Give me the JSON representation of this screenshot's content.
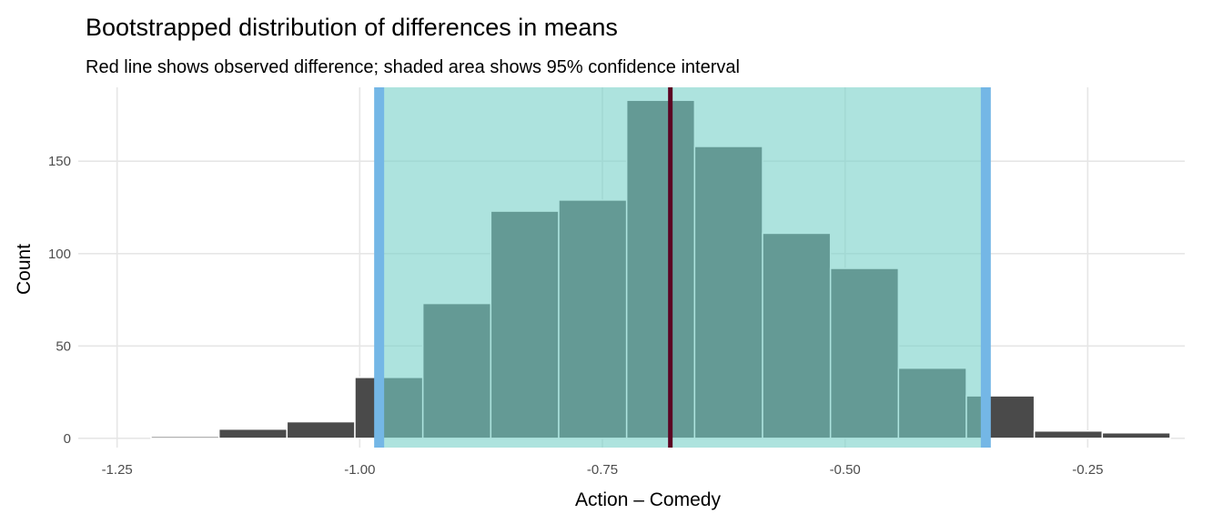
{
  "chart_data": {
    "type": "histogram",
    "title": "Bootstrapped distribution of differences in means",
    "subtitle": "Red line shows observed difference; shaded area shows 95% confidence interval",
    "xlabel": "Action – Comedy",
    "ylabel": "Count",
    "xlim": [
      -1.29,
      -0.15
    ],
    "ylim": [
      -5,
      190
    ],
    "x_ticks": [
      -1.25,
      -1.0,
      -0.75,
      -0.5,
      -0.25
    ],
    "x_tick_labels": [
      "-1.25",
      "-1.00",
      "-0.75",
      "-0.50",
      "-0.25"
    ],
    "y_ticks": [
      0,
      50,
      100,
      150
    ],
    "y_tick_labels": [
      "0",
      "50",
      "100",
      "150"
    ],
    "bin_width": 0.07,
    "bins": [
      {
        "x0": -1.215,
        "x1": -1.145,
        "count": 1
      },
      {
        "x0": -1.145,
        "x1": -1.075,
        "count": 5
      },
      {
        "x0": -1.075,
        "x1": -1.005,
        "count": 9
      },
      {
        "x0": -1.005,
        "x1": -0.935,
        "count": 33
      },
      {
        "x0": -0.935,
        "x1": -0.865,
        "count": 73
      },
      {
        "x0": -0.865,
        "x1": -0.795,
        "count": 123
      },
      {
        "x0": -0.795,
        "x1": -0.725,
        "count": 129
      },
      {
        "x0": -0.725,
        "x1": -0.655,
        "count": 183
      },
      {
        "x0": -0.655,
        "x1": -0.585,
        "count": 158
      },
      {
        "x0": -0.585,
        "x1": -0.515,
        "count": 111
      },
      {
        "x0": -0.515,
        "x1": -0.445,
        "count": 92
      },
      {
        "x0": -0.445,
        "x1": -0.375,
        "count": 38
      },
      {
        "x0": -0.375,
        "x1": -0.305,
        "count": 23
      },
      {
        "x0": -0.305,
        "x1": -0.235,
        "count": 4
      },
      {
        "x0": -0.235,
        "x1": -0.165,
        "count": 3
      }
    ],
    "observed_difference": -0.68,
    "confidence_interval_95": [
      -0.98,
      -0.355
    ],
    "grid": true,
    "colors": {
      "bar": "#4a4a4a",
      "bar_outline": "#ffffff",
      "ci_fill": "#76d1c8",
      "ci_fill_opacity": 0.6,
      "ci_bounds": "#74b7e6",
      "observed_line": "#5c0222",
      "grid": "#e6e6e6"
    }
  }
}
